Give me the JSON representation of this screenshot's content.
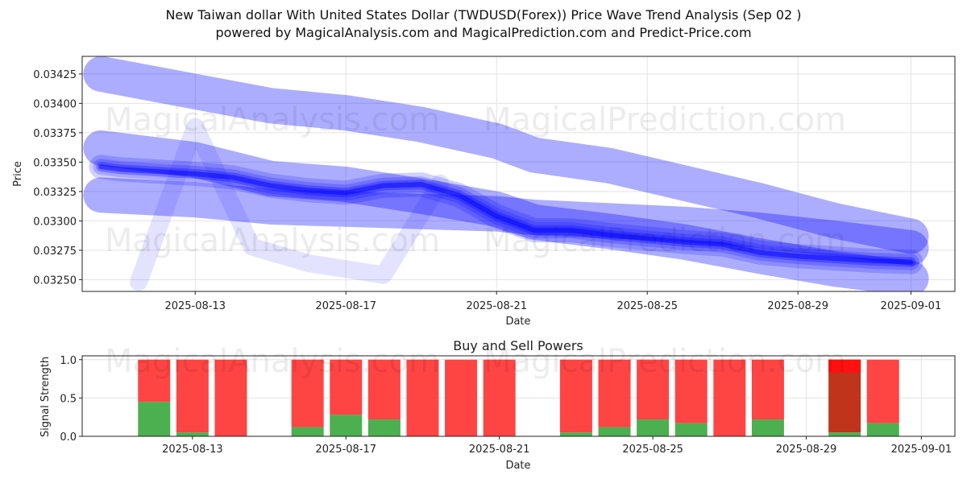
{
  "title_line1": "New Taiwan dollar With United States Dollar (TWDUSD(Forex)) Price Wave Trend Analysis (Sep 02 )",
  "title_line2": "powered by MagicalAnalysis.com and MagicalPrediction.com and Predict-Price.com",
  "watermarks": [
    "MagicalAnalysis.com",
    "MagicalPrediction.com"
  ],
  "colors": {
    "wave": "#0000ff",
    "buy": "#4caf50",
    "sell": "#ff4444",
    "dark_sell": "#c0341c",
    "bright_sell": "#ff1111"
  },
  "chart_data": [
    {
      "type": "line",
      "title": "",
      "xlabel": "Date",
      "ylabel": "Price",
      "xlim": [
        "2025-08-10T00:00",
        "2025-09-02T04:00"
      ],
      "ylim": [
        0.0324,
        0.0344
      ],
      "grid": true,
      "x_ticks": [
        "2025-08-13",
        "2025-08-17",
        "2025-08-21",
        "2025-08-25",
        "2025-08-29",
        "2025-09-01"
      ],
      "y_ticks": [
        "0.03250",
        "0.03275",
        "0.03300",
        "0.03325",
        "0.03350",
        "0.03375",
        "0.03400",
        "0.03425"
      ],
      "series": [
        {
          "role": "upper-band",
          "x": [
            "2025-08-10T12:00",
            "2025-08-13",
            "2025-08-15",
            "2025-08-17",
            "2025-08-19",
            "2025-08-21",
            "2025-08-22",
            "2025-08-24",
            "2025-08-26",
            "2025-08-28",
            "2025-08-30",
            "2025-09-01"
          ],
          "values": [
            0.03425,
            0.0341,
            0.03398,
            0.03392,
            0.03382,
            0.03368,
            0.03356,
            0.03347,
            0.03332,
            0.03317,
            0.033,
            0.03287
          ]
        },
        {
          "role": "middle-band",
          "x": [
            "2025-08-10T12:00",
            "2025-08-13",
            "2025-08-15",
            "2025-08-17",
            "2025-08-19",
            "2025-08-21",
            "2025-08-22",
            "2025-08-24",
            "2025-08-26",
            "2025-08-28",
            "2025-08-30",
            "2025-09-01"
          ],
          "values": [
            0.03362,
            0.03352,
            0.03336,
            0.03331,
            0.03321,
            0.0331,
            0.03299,
            0.03291,
            0.03282,
            0.0327,
            0.03259,
            0.03251
          ]
        },
        {
          "role": "lower-band",
          "x": [
            "2025-08-10T12:00",
            "2025-08-13",
            "2025-08-15",
            "2025-08-17",
            "2025-08-19",
            "2025-08-21",
            "2025-08-22",
            "2025-08-24",
            "2025-08-26",
            "2025-08-28",
            "2025-08-30",
            "2025-09-01"
          ],
          "values": [
            0.03322,
            0.03318,
            0.03312,
            0.0331,
            0.03308,
            0.03306,
            0.03303,
            0.033,
            0.03297,
            0.03292,
            0.03285,
            0.03277
          ]
        },
        {
          "role": "oscillation",
          "x": [
            "2025-08-11T12:00",
            "2025-08-13",
            "2025-08-14T12:00",
            "2025-08-16",
            "2025-08-18",
            "2025-08-19T12:00"
          ],
          "values": [
            0.03248,
            0.0338,
            0.03278,
            0.03264,
            0.03254,
            0.03332
          ]
        },
        {
          "role": "price-wave",
          "x": [
            "2025-08-10T12:00",
            "2025-08-11",
            "2025-08-12",
            "2025-08-13",
            "2025-08-14",
            "2025-08-15",
            "2025-08-16",
            "2025-08-17",
            "2025-08-18",
            "2025-08-19",
            "2025-08-20",
            "2025-08-21",
            "2025-08-22",
            "2025-08-23",
            "2025-08-24",
            "2025-08-25",
            "2025-08-26",
            "2025-08-27",
            "2025-08-28",
            "2025-08-29",
            "2025-08-30",
            "2025-08-31",
            "2025-09-01"
          ],
          "values": [
            0.03346,
            0.03344,
            0.03342,
            0.0334,
            0.03337,
            0.0333,
            0.03326,
            0.03324,
            0.0333,
            0.03331,
            0.03322,
            0.03304,
            0.03292,
            0.03292,
            0.03288,
            0.03285,
            0.03282,
            0.0328,
            0.03273,
            0.0327,
            0.03268,
            0.03266,
            0.03265
          ]
        }
      ]
    },
    {
      "type": "bar",
      "title": "Buy and Sell Powers",
      "xlabel": "Date",
      "ylabel": "Signal Strength",
      "ylim": [
        0,
        1.05
      ],
      "grid": true,
      "x_ticks": [
        "2025-08-13",
        "2025-08-17",
        "2025-08-21",
        "2025-08-25",
        "2025-08-29",
        "2025-09-01"
      ],
      "y_ticks": [
        "0.0",
        "0.5",
        "1.0"
      ],
      "x": [
        "2025-08-12",
        "2025-08-13",
        "2025-08-14",
        "2025-08-16",
        "2025-08-17",
        "2025-08-18",
        "2025-08-19",
        "2025-08-20",
        "2025-08-21",
        "2025-08-23",
        "2025-08-24",
        "2025-08-25",
        "2025-08-26",
        "2025-08-27",
        "2025-08-28",
        "2025-08-30",
        "2025-08-31"
      ],
      "series": [
        {
          "name": "buy",
          "values": [
            0.45,
            0.05,
            0.0,
            0.12,
            0.28,
            0.22,
            0.0,
            0.0,
            0.0,
            0.05,
            0.12,
            0.22,
            0.17,
            0.0,
            0.22,
            0.05,
            0.17
          ]
        },
        {
          "name": "sell",
          "values": [
            0.55,
            0.95,
            1.0,
            0.88,
            0.72,
            0.78,
            1.0,
            1.0,
            1.0,
            0.95,
            0.88,
            0.78,
            0.83,
            1.0,
            0.78,
            0.95,
            0.83
          ]
        }
      ]
    }
  ]
}
